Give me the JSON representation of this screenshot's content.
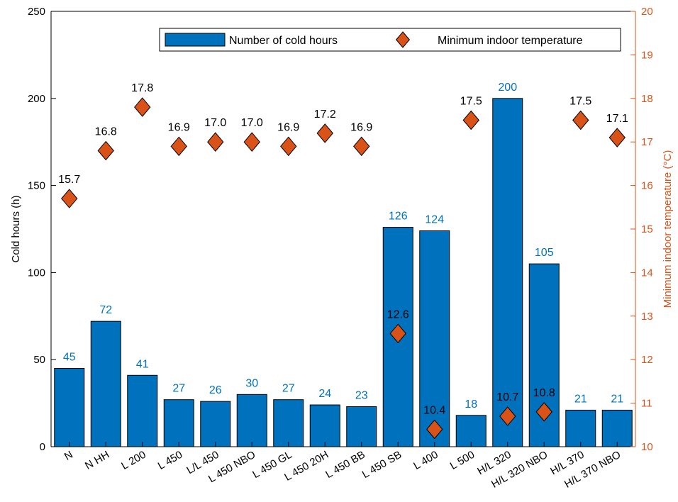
{
  "chart_data": {
    "type": "bar",
    "categories": [
      "N",
      "N HH",
      "L 200",
      "L 450",
      "L/L 450",
      "L 450 NBO",
      "L 450 GL",
      "L 450 20H",
      "L 450 BB",
      "L 450 SB",
      "L 400",
      "L 500",
      "H/L 320",
      "H/L 320 NBO",
      "H/L 370",
      "H/L 370 NBO"
    ],
    "series": [
      {
        "name": "Number of cold hours",
        "axis": "left",
        "style": "bar",
        "values": [
          45,
          72,
          41,
          27,
          26,
          30,
          27,
          24,
          23,
          126,
          124,
          18,
          200,
          105,
          21,
          21
        ],
        "labels": [
          "45",
          "72",
          "41",
          "27",
          "26",
          "30",
          "27",
          "24",
          "23",
          "126",
          "124",
          "18",
          "200",
          "105",
          "21",
          "21"
        ]
      },
      {
        "name": "Minimum indoor temperature",
        "axis": "right",
        "style": "diamond-marker",
        "values": [
          15.7,
          16.8,
          17.8,
          16.9,
          17.0,
          17.0,
          16.9,
          17.2,
          16.9,
          12.6,
          10.4,
          17.5,
          10.7,
          10.8,
          17.5,
          17.1
        ],
        "labels": [
          "15.7",
          "16.8",
          "17.8",
          "16.9",
          "17.0",
          "17.0",
          "16.9",
          "17.2",
          "16.9",
          "12.6",
          "10.4",
          "17.5",
          "10.7",
          "10.8",
          "17.5",
          "17.1"
        ]
      }
    ],
    "ylabel": "Cold hours (h)",
    "ylabel_right": "Minimum indoor temperature (°C)",
    "ylim": [
      0,
      250
    ],
    "yticks": [
      "0",
      "50",
      "100",
      "150",
      "200",
      "250"
    ],
    "ylim_right": [
      10,
      20
    ],
    "yticks_right": [
      "10",
      "11",
      "12",
      "13",
      "14",
      "15",
      "16",
      "17",
      "18",
      "19",
      "20"
    ],
    "grid": false,
    "legend": "top-center",
    "colors": {
      "bar": "#0072BD",
      "bar_label": "#0072BD",
      "marker": "#D95319",
      "right_axis": "#D95319",
      "left_axis": "#000000"
    }
  }
}
